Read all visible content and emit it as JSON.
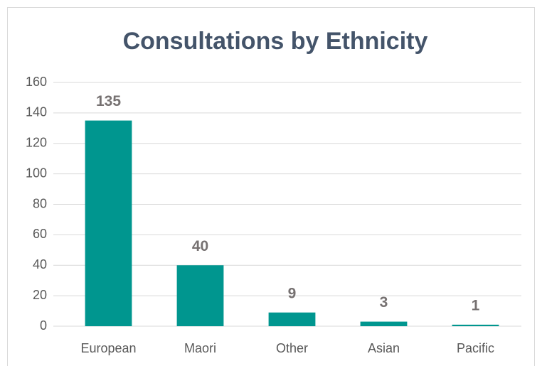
{
  "chart_data": {
    "type": "bar",
    "title": "Consultations by Ethnicity",
    "categories": [
      "European",
      "Maori",
      "Other",
      "Asian",
      "Pacific"
    ],
    "values": [
      135,
      40,
      9,
      3,
      1
    ],
    "color": "#00968f",
    "ylim": [
      0,
      160
    ],
    "yticks": [
      0,
      20,
      40,
      60,
      80,
      100,
      120,
      140,
      160
    ],
    "grid": true
  }
}
